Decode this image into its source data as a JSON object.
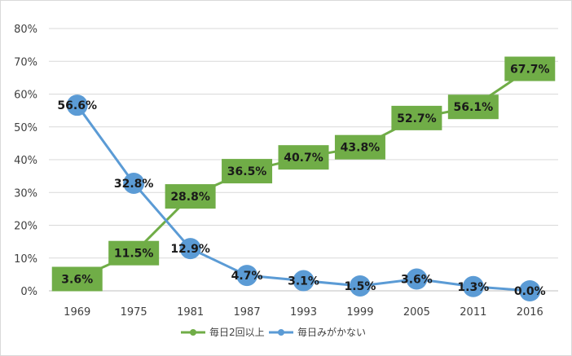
{
  "chart_data": {
    "type": "line",
    "title": "",
    "xlabel": "",
    "ylabel": "",
    "categories": [
      "1969",
      "1975",
      "1981",
      "1987",
      "1993",
      "1999",
      "2005",
      "2011",
      "2016"
    ],
    "ylim": [
      0,
      80
    ],
    "yticks": [
      "0%",
      "10%",
      "20%",
      "30%",
      "40%",
      "50%",
      "60%",
      "70%",
      "80%"
    ],
    "grid": true,
    "legend": "bottom",
    "series": [
      {
        "name": "毎日2回以上",
        "color": "#70AD47",
        "label_style": "box",
        "values": [
          3.6,
          11.5,
          28.8,
          36.5,
          40.7,
          43.8,
          52.7,
          56.1,
          67.7
        ],
        "labels": [
          "3.6%",
          "11.5%",
          "28.8%",
          "36.5%",
          "40.7%",
          "43.8%",
          "52.7%",
          "56.1%",
          "67.7%"
        ]
      },
      {
        "name": "毎日みがかない",
        "color": "#5B9BD5",
        "label_style": "circle",
        "values": [
          56.6,
          32.8,
          12.9,
          4.7,
          3.1,
          1.5,
          3.6,
          1.3,
          0.0
        ],
        "labels": [
          "56.6%",
          "32.8%",
          "12.9%",
          "4.7%",
          "3.1%",
          "1.5%",
          "3.6%",
          "1.3%",
          "0.0%"
        ]
      }
    ]
  }
}
